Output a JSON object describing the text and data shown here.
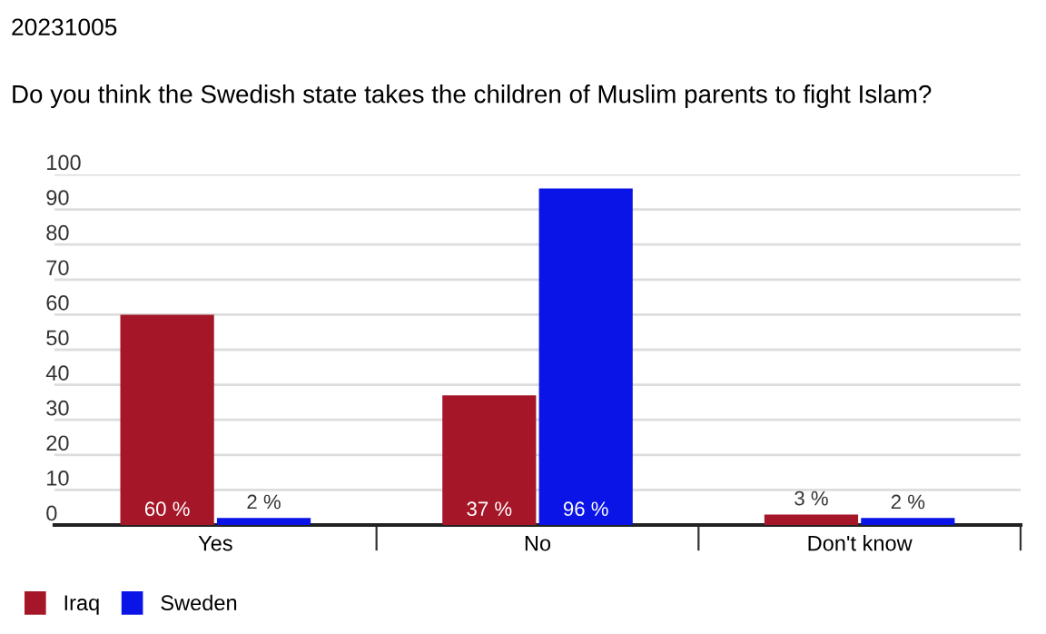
{
  "chart_data": {
    "type": "bar",
    "title": "20231005",
    "subtitle": "Do you think the Swedish state takes the children of Muslim parents to fight Islam?",
    "categories": [
      "Yes",
      "No",
      "Don't know"
    ],
    "series": [
      {
        "name": "Iraq",
        "color": "#a51728",
        "values": [
          60,
          37,
          3
        ],
        "value_labels": [
          "60 %",
          "37 %",
          "3 %"
        ]
      },
      {
        "name": "Sweden",
        "color": "#0a14e6",
        "values": [
          2,
          96,
          2
        ],
        "value_labels": [
          "2 %",
          "96 %",
          "2 %"
        ]
      }
    ],
    "ylim": [
      0,
      100
    ],
    "yticks": [
      0,
      10,
      20,
      30,
      40,
      50,
      60,
      70,
      80,
      90,
      100
    ],
    "grid": "y",
    "legend": "bottom left"
  }
}
